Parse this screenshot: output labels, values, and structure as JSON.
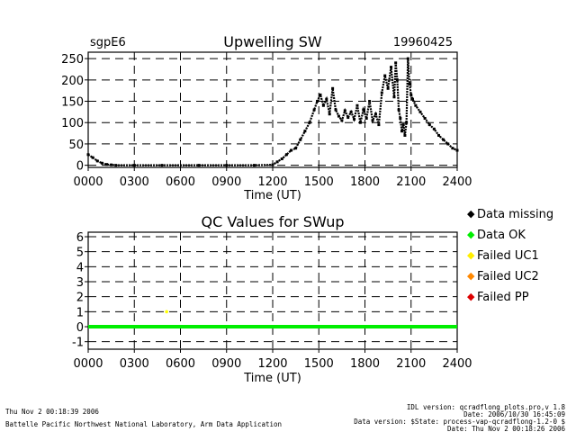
{
  "chart_data": [
    {
      "type": "scatter",
      "title": "Upwelling SW",
      "site": "sgpE6",
      "date": "19960425",
      "xlabel": "Time (UT)",
      "ylabel": "",
      "xlim": [
        0,
        2400
      ],
      "ylim": [
        -5,
        265
      ],
      "x_ticks": [
        "0000",
        "0300",
        "0600",
        "0900",
        "1200",
        "1500",
        "1800",
        "2100",
        "2400"
      ],
      "y_ticks": [
        "0",
        "50",
        "100",
        "150",
        "200",
        "250"
      ],
      "grid": true,
      "series": [
        {
          "color": "#000000",
          "x": [
            0,
            30,
            60,
            90,
            120,
            150,
            180,
            300,
            480,
            720,
            900,
            1080,
            1200,
            1230,
            1260,
            1290,
            1320,
            1350,
            1380,
            1410,
            1440,
            1470,
            1490,
            1510,
            1530,
            1550,
            1570,
            1590,
            1610,
            1630,
            1650,
            1670,
            1690,
            1710,
            1730,
            1750,
            1770,
            1790,
            1810,
            1830,
            1850,
            1870,
            1890,
            1910,
            1930,
            1950,
            1970,
            1990,
            2000,
            2010,
            2020,
            2030,
            2040,
            2050,
            2060,
            2070,
            2080,
            2090,
            2100,
            2110,
            2130,
            2160,
            2190,
            2220,
            2250,
            2280,
            2310,
            2340,
            2370,
            2400
          ],
          "y": [
            25,
            18,
            10,
            5,
            2,
            1,
            0,
            0,
            0,
            0,
            0,
            0,
            1,
            8,
            15,
            25,
            35,
            40,
            60,
            80,
            100,
            130,
            150,
            165,
            140,
            155,
            120,
            180,
            130,
            115,
            105,
            128,
            112,
            125,
            108,
            140,
            100,
            130,
            110,
            150,
            105,
            120,
            95,
            170,
            210,
            180,
            230,
            160,
            240,
            200,
            130,
            110,
            80,
            95,
            70,
            100,
            250,
            190,
            165,
            155,
            140,
            125,
            110,
            95,
            85,
            70,
            60,
            50,
            40,
            35
          ]
        }
      ]
    },
    {
      "type": "line",
      "title": "QC Values for SWup",
      "xlabel": "Time (UT)",
      "ylabel": "",
      "xlim": [
        0,
        2400
      ],
      "ylim": [
        -1.5,
        6.3
      ],
      "x_ticks": [
        "0000",
        "0300",
        "0600",
        "0900",
        "1200",
        "1500",
        "1800",
        "2100",
        "2400"
      ],
      "y_ticks": [
        "-1",
        "0",
        "1",
        "2",
        "3",
        "4",
        "5",
        "6"
      ],
      "grid": true,
      "series": [
        {
          "name": "Data OK",
          "color": "#00ee00",
          "x": [
            0,
            2400
          ],
          "y": [
            0,
            0
          ]
        },
        {
          "name": "Failed UC1",
          "color": "#ffff00",
          "x": [
            510
          ],
          "y": [
            1
          ]
        }
      ]
    }
  ],
  "legend": [
    {
      "symbol": "◆",
      "color": "#000000",
      "label": "Data missing"
    },
    {
      "symbol": "◆",
      "color": "#00ee00",
      "label": "Data OK"
    },
    {
      "symbol": "◆",
      "color": "#ffee00",
      "label": "Failed UC1"
    },
    {
      "symbol": "◆",
      "color": "#ff8800",
      "label": "Failed UC2"
    },
    {
      "symbol": "◆",
      "color": "#dd0000",
      "label": "Failed PP"
    }
  ],
  "footer": {
    "left_line1": "Thu Nov  2 00:18:39 2006",
    "left_line2": "Battelle Pacific Northwest National Laboratory, Arm Data Application",
    "right_line1": "IDL version: qcradflong_plots.pro,v 1.8",
    "right_line2": "Date: 2006/10/30 16:45:09",
    "right_line3": "Data version: $State: process-vap-qcradflong-1.2-0 $",
    "right_line4": "Date: Thu Nov  2 00:18:26 2006"
  }
}
